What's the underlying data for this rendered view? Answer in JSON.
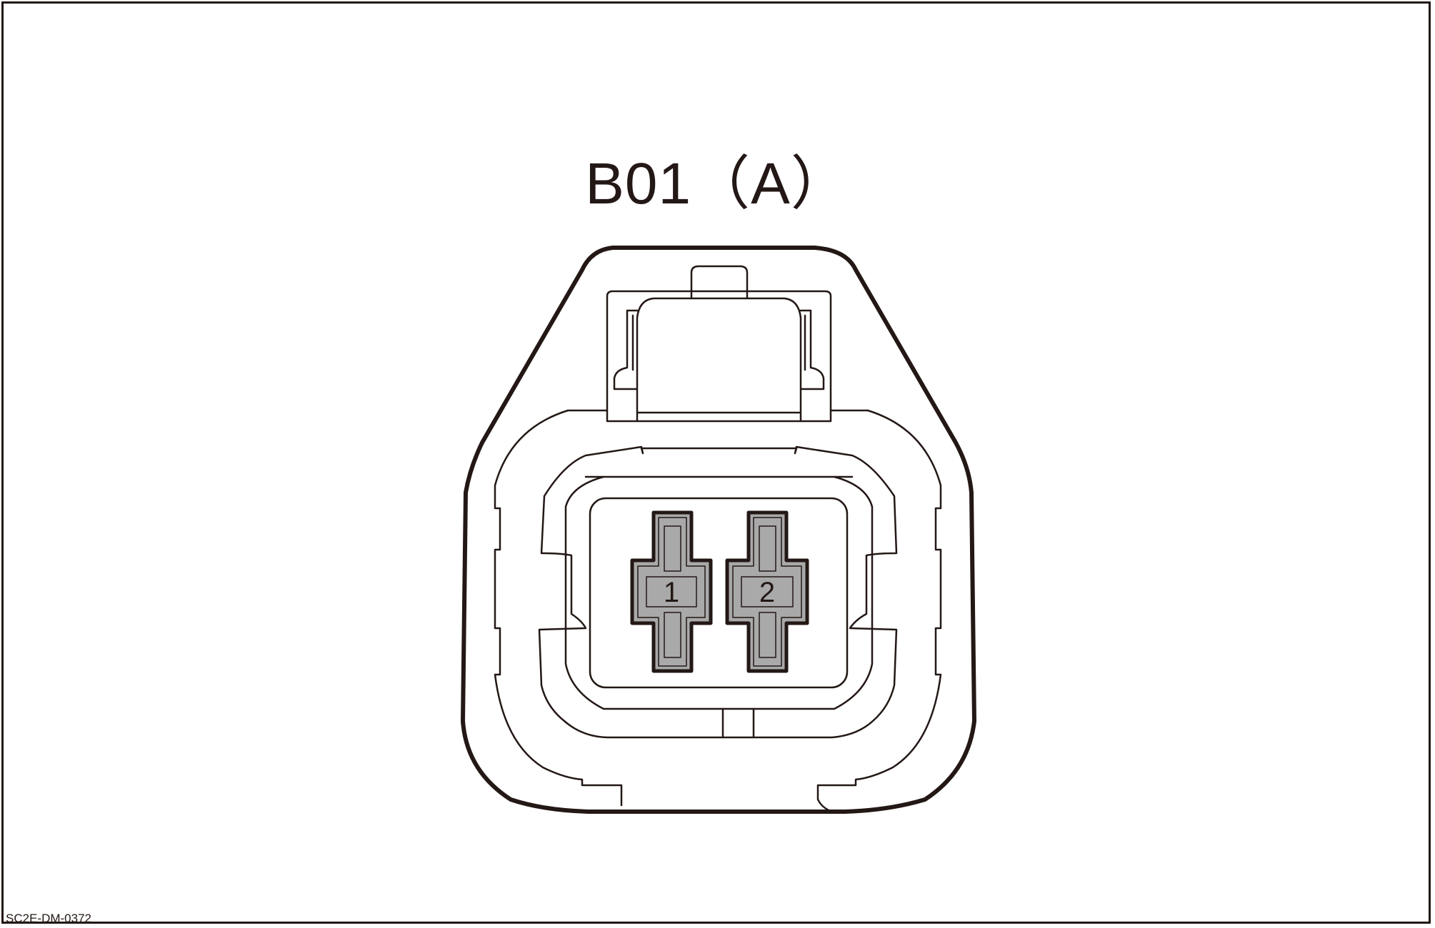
{
  "connector": {
    "title": "B01（A）",
    "pins": [
      {
        "number": "1"
      },
      {
        "number": "2"
      }
    ]
  },
  "figure_code": "SC2E-DM-0372",
  "colors": {
    "line": "#231815",
    "terminal_fill": "#a9a9a9",
    "background": "#ffffff"
  }
}
